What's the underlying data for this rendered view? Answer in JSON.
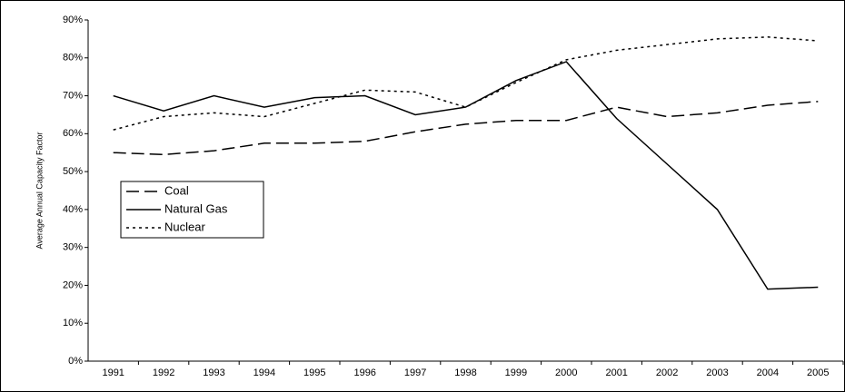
{
  "chart_data": {
    "type": "line",
    "y_label": "Average Annual Capacity Factor",
    "categories": [
      "1991",
      "1992",
      "1993",
      "1994",
      "1995",
      "1996",
      "1997",
      "1998",
      "1999",
      "2000",
      "2001",
      "2002",
      "2003",
      "2004",
      "2005"
    ],
    "series": [
      {
        "name": "Coal",
        "color": "#000000",
        "style": "dashed",
        "values": [
          55,
          54.5,
          55.5,
          57.5,
          57.5,
          58,
          60.5,
          62.5,
          63.5,
          63.5,
          67,
          64.5,
          65.5,
          67.5,
          68.5
        ]
      },
      {
        "name": "Natural Gas",
        "color": "#000000",
        "style": "solid",
        "values": [
          70,
          66,
          70,
          67,
          69.5,
          70,
          65,
          67,
          74,
          79,
          64,
          52,
          40,
          19,
          19.5
        ]
      },
      {
        "name": "Nuclear",
        "color": "#000000",
        "style": "dotted",
        "values": [
          61,
          64.5,
          65.5,
          64.5,
          68,
          71.5,
          71,
          67,
          73.5,
          79.5,
          82,
          83.5,
          85,
          85.5,
          84.5
        ]
      }
    ],
    "ylim": [
      0,
      90
    ],
    "yticks": [
      {
        "value": 0,
        "label": "0%"
      },
      {
        "value": 10,
        "label": "10%"
      },
      {
        "value": 20,
        "label": "20%"
      },
      {
        "value": 30,
        "label": "30%"
      },
      {
        "value": 40,
        "label": "40%"
      },
      {
        "value": 50,
        "label": "50%"
      },
      {
        "value": 60,
        "label": "60%"
      },
      {
        "value": 70,
        "label": "70%"
      },
      {
        "value": 80,
        "label": "80%"
      },
      {
        "value": 90,
        "label": "90%"
      }
    ],
    "grid": false,
    "legend": "left"
  }
}
